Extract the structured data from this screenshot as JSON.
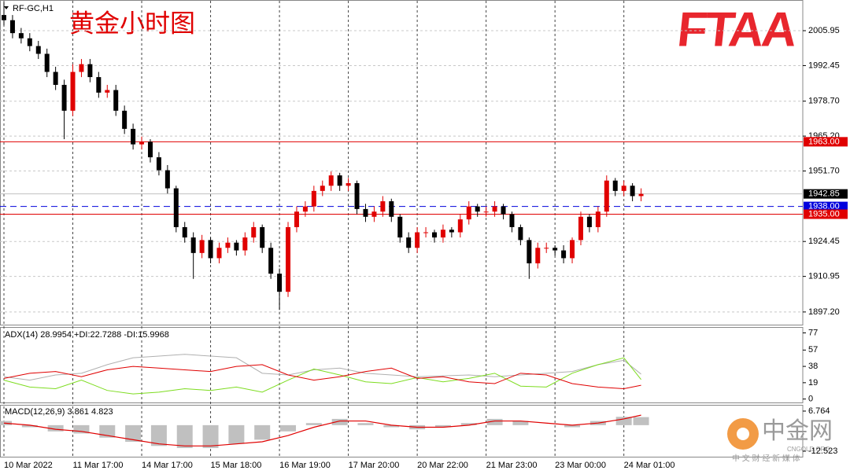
{
  "chart_data": [
    {
      "type": "candlestick",
      "subtitle": "RF-GC,H1",
      "title": "黄金小时图",
      "categories": [
        "10 Mar 2022",
        null,
        null,
        null,
        null,
        null,
        null,
        null,
        "11 Mar 17:00",
        null,
        null,
        null,
        null,
        null,
        null,
        null,
        "14 Mar 17:00",
        null,
        null,
        null,
        null,
        null,
        null,
        null,
        "15 Mar 18:00",
        null,
        null,
        null,
        null,
        null,
        null,
        null,
        "16 Mar 19:00",
        null,
        null,
        null,
        null,
        null,
        null,
        null,
        "17 Mar 20:00",
        null,
        null,
        null,
        null,
        null,
        null,
        null,
        "20 Mar 22:00",
        null,
        null,
        null,
        null,
        null,
        null,
        null,
        "21 Mar 23:00",
        null,
        null,
        null,
        null,
        null,
        null,
        null,
        "23 Mar 00:00",
        null,
        null,
        null,
        null,
        null,
        null,
        null,
        "24 Mar 01:00",
        null,
        null
      ],
      "open": [
        2012,
        2010,
        2005,
        2003,
        2000,
        1997,
        1990,
        1985,
        1975,
        1990,
        1993,
        1988,
        1982,
        1983,
        1975,
        1968,
        1962,
        1963,
        1957,
        1952,
        1945,
        1930,
        1926,
        1920,
        1925,
        1918,
        1922,
        1924,
        1921,
        1926,
        1930,
        1922,
        1912,
        1905,
        1930,
        1936,
        1938,
        1944,
        1946,
        1950,
        1946,
        1947,
        1937,
        1934,
        1936,
        1940,
        1934,
        1926,
        1922,
        1928,
        1928,
        1926,
        1929,
        1928,
        1933,
        1938,
        1936,
        1936,
        1938,
        1935,
        1930,
        1925,
        1916,
        1922,
        1922,
        1921,
        1918,
        1925,
        1934,
        1930,
        1936,
        1948,
        1944,
        1946,
        1942
      ],
      "high": [
        2017,
        2012,
        2007,
        2005,
        2002,
        1999,
        1992,
        1987,
        1993,
        1995,
        1995,
        1990,
        1985,
        1985,
        1977,
        1970,
        1965,
        1964,
        1959,
        1954,
        1946,
        1932,
        1928,
        1927,
        1926,
        1924,
        1926,
        1925,
        1928,
        1932,
        1931,
        1924,
        1914,
        1932,
        1938,
        1940,
        1946,
        1948,
        1951.5,
        1951,
        1949,
        1948,
        1939,
        1938,
        1942,
        1941,
        1935,
        1928,
        1930,
        1930,
        1929,
        1931,
        1930,
        1935,
        1940,
        1939,
        1938,
        1940,
        1939,
        1936,
        1931,
        1926,
        1924,
        1924,
        1923,
        1923,
        1926,
        1936,
        1935,
        1938,
        1950,
        1949,
        1948,
        1947,
        1945
      ],
      "low": [
        2008,
        2003,
        2001,
        1998,
        1995,
        1988,
        1983,
        1964,
        1973,
        1988,
        1986,
        1980,
        1980,
        1973,
        1966,
        1960,
        1960,
        1955,
        1950,
        1943,
        1928,
        1924,
        1910,
        1918,
        1916,
        1916,
        1920,
        1919,
        1919,
        1924,
        1920,
        1910,
        1898,
        1903,
        1928,
        1934,
        1936,
        1942,
        1944,
        1944,
        1944,
        1935,
        1932,
        1932,
        1934,
        1932,
        1924,
        1920,
        1920,
        1926,
        1924,
        1924,
        1926,
        1926,
        1931,
        1934,
        1934,
        1934,
        1933,
        1928,
        1923,
        1910,
        1914,
        1920,
        1919,
        1916,
        1916,
        1923,
        1928,
        1928,
        1934,
        1942,
        1942,
        1940,
        1940
      ],
      "close": [
        2010,
        2005,
        2003,
        2000,
        1997,
        1990,
        1985,
        1975,
        1990,
        1993,
        1988,
        1982,
        1983,
        1975,
        1968,
        1962,
        1963,
        1957,
        1952,
        1945,
        1930,
        1926,
        1920,
        1925,
        1918,
        1922,
        1924,
        1921,
        1926,
        1930,
        1922,
        1912,
        1905,
        1930,
        1936,
        1938,
        1944,
        1946,
        1950,
        1946,
        1947,
        1937,
        1934,
        1936,
        1940,
        1934,
        1926,
        1922,
        1928,
        1928,
        1926,
        1929,
        1928,
        1933,
        1938,
        1936,
        1936,
        1938,
        1935,
        1930,
        1925,
        1916,
        1922,
        1922,
        1921,
        1918,
        1925,
        1934,
        1930,
        1936,
        1948,
        1944,
        1946,
        1942,
        1942.85
      ],
      "colors": {
        "up": "#e00000",
        "down": "#000000"
      },
      "ylim": [
        1892.3,
        2017.2
      ],
      "yticks": [
        2005.95,
        1992.45,
        {
          "value": 1978.7,
          "label": "1978.70"
        },
        {
          "value": 1965.2,
          "label": "1965.20"
        },
        {
          "value": 1951.7,
          "label": "1951.70"
        },
        1924.45,
        1910.95,
        {
          "value": 1897.2,
          "label": "1897.20"
        }
      ],
      "levels": [
        {
          "value": 1963,
          "label": "1963.00",
          "color": "#e00000",
          "style": "solid"
        },
        {
          "value": 1942.85,
          "color": "#c0c0c0",
          "box": "#000000",
          "style": "solid"
        },
        {
          "value": 1938,
          "label": "1938.00",
          "color": "#0000dd",
          "style": "dashed"
        },
        {
          "value": 1935,
          "label": "1935.00",
          "color": "#e00000",
          "style": "solid"
        }
      ],
      "grid": true
    },
    {
      "type": "line",
      "title": "ADX(14) 28.9954 +DI:22.7288 -DI:15.9968",
      "x": [
        0,
        3,
        6,
        9,
        12,
        15,
        18,
        21,
        24,
        27,
        30,
        33,
        36,
        39,
        42,
        45,
        48,
        51,
        54,
        57,
        60,
        63,
        66,
        69,
        72,
        74
      ],
      "series": [
        {
          "color": "#b0b0b0",
          "values": [
            26,
            22,
            28,
            30,
            40,
            48,
            50,
            52,
            50,
            48,
            30,
            28,
            34,
            36,
            30,
            28,
            26,
            27,
            28,
            26,
            28,
            30,
            32,
            40,
            45,
            29
          ]
        },
        {
          "color": "#7ddc1f",
          "values": [
            22,
            14,
            12,
            22,
            10,
            6,
            8,
            12,
            10,
            14,
            8,
            22,
            35,
            28,
            20,
            18,
            25,
            20,
            24,
            30,
            15,
            14,
            30,
            40,
            48,
            22.7
          ]
        },
        {
          "color": "#e00000",
          "values": [
            24,
            30,
            32,
            26,
            34,
            38,
            36,
            34,
            32,
            38,
            40,
            28,
            22,
            26,
            32,
            36,
            24,
            26,
            20,
            18,
            30,
            28,
            18,
            14,
            12,
            16
          ]
        }
      ],
      "ylim": [
        -4,
        82
      ],
      "yticks": [
        0,
        19,
        38,
        57,
        77
      ]
    },
    {
      "type": "combo",
      "title": "MACD(12,26,9) 3.861 4.823",
      "x": [
        0,
        3,
        6,
        9,
        12,
        15,
        18,
        21,
        24,
        27,
        30,
        33,
        36,
        39,
        42,
        45,
        48,
        51,
        54,
        57,
        60,
        63,
        66,
        69,
        72,
        74
      ],
      "series": [
        {
          "kind": "bar",
          "color": "#c0c0c0",
          "values": [
            2,
            -1,
            -3,
            -4,
            -6,
            -8,
            -10,
            -11,
            -11,
            -9,
            -7,
            -3,
            1,
            3,
            1,
            -1,
            -2,
            -1,
            1,
            3,
            2,
            0,
            -1,
            2,
            4,
            3.861
          ]
        },
        {
          "kind": "line",
          "color": "#e00000",
          "values": [
            1,
            0,
            -2,
            -3,
            -5,
            -7,
            -9,
            -10,
            -10,
            -9,
            -8,
            -5,
            -1,
            2,
            2,
            0,
            -1,
            -1,
            0,
            2,
            2,
            1,
            0,
            1,
            3,
            4.823
          ]
        }
      ],
      "ylim": [
        -14.8,
        9.4
      ],
      "yticks": [
        6.764,
        -12.523
      ]
    }
  ],
  "branding": {
    "logo": "FTAA",
    "watermark": "中金网",
    "watermark_sub": "CNGOLD.ORG",
    "watermark_tagline": "中 文 财 经 新 媒 体"
  }
}
